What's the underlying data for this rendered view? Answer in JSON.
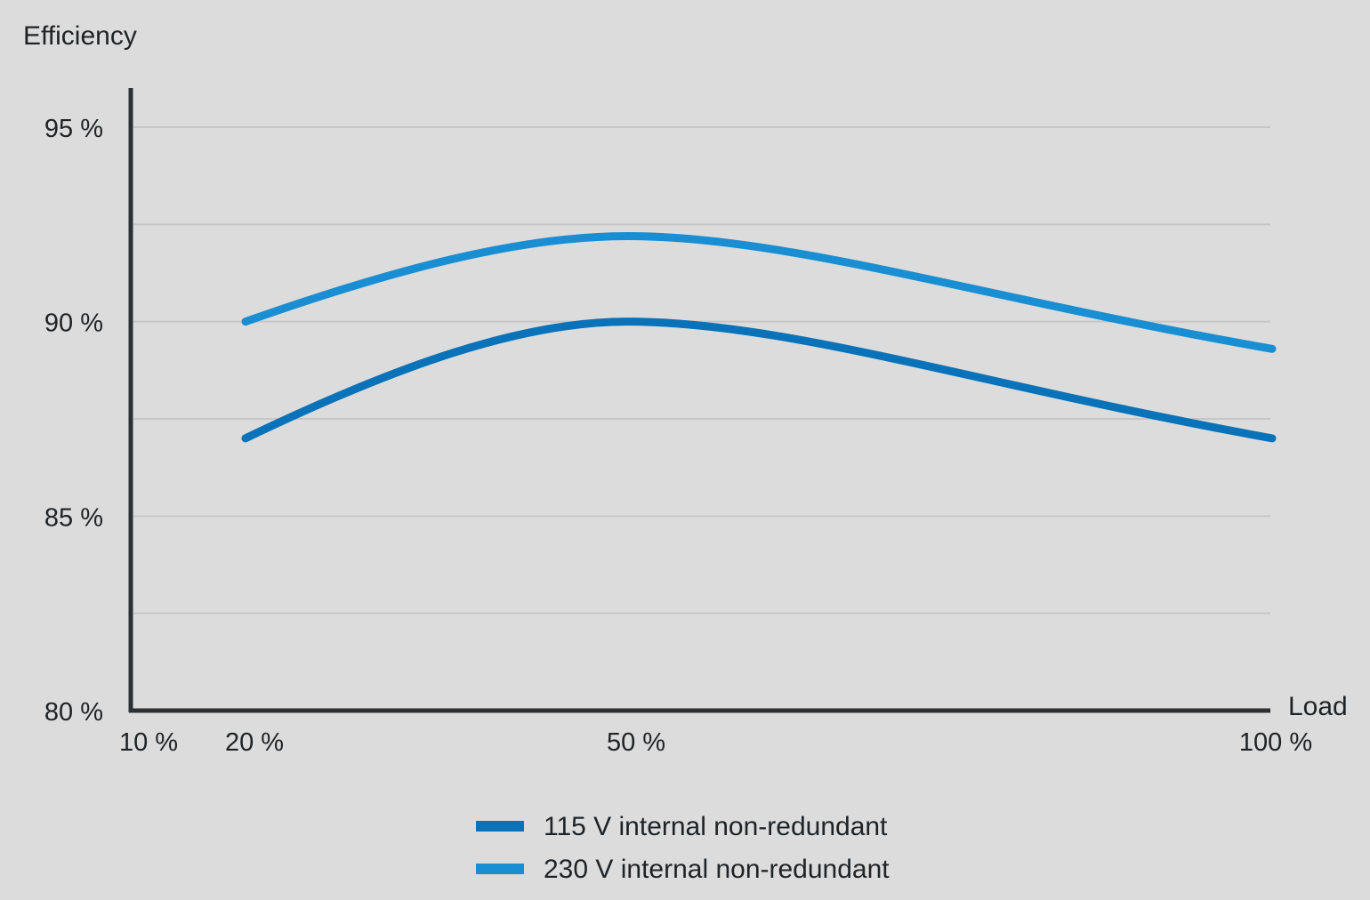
{
  "chart_data": {
    "type": "line",
    "ylabel": "Efficiency",
    "xlabel": "Load",
    "x_tick_labels": [
      {
        "value": 10,
        "label": "10 %"
      },
      {
        "value": 20,
        "label": "20 %"
      },
      {
        "value": 50,
        "label": "50 %"
      },
      {
        "value": 100,
        "label": "100 %"
      }
    ],
    "y_tick_labels": [
      {
        "value": 80,
        "label": "80 %"
      },
      {
        "value": 85,
        "label": "85 %"
      },
      {
        "value": 90,
        "label": "90 %"
      },
      {
        "value": 95,
        "label": "95 %"
      }
    ],
    "y_gridlines": [
      82.5,
      85,
      87.5,
      90,
      92.5,
      95
    ],
    "grid": true,
    "ylim": [
      80,
      96
    ],
    "xlim": [
      10,
      100
    ],
    "x_scale": "piecewise (20 % → 50 % spans ~3× the 10 % → 20 % width per unit; 50 % → 100 % compressed)",
    "series": [
      {
        "name": "115 V internal non-redundant",
        "color": "#0a72b8",
        "x": [
          20,
          50,
          100
        ],
        "values": [
          87.0,
          90.0,
          87.0
        ]
      },
      {
        "name": "230 V internal non-redundant",
        "color": "#1a8ed3",
        "x": [
          20,
          50,
          100
        ],
        "values": [
          90.0,
          92.2,
          89.3
        ]
      }
    ],
    "legend_position": "bottom-center"
  }
}
